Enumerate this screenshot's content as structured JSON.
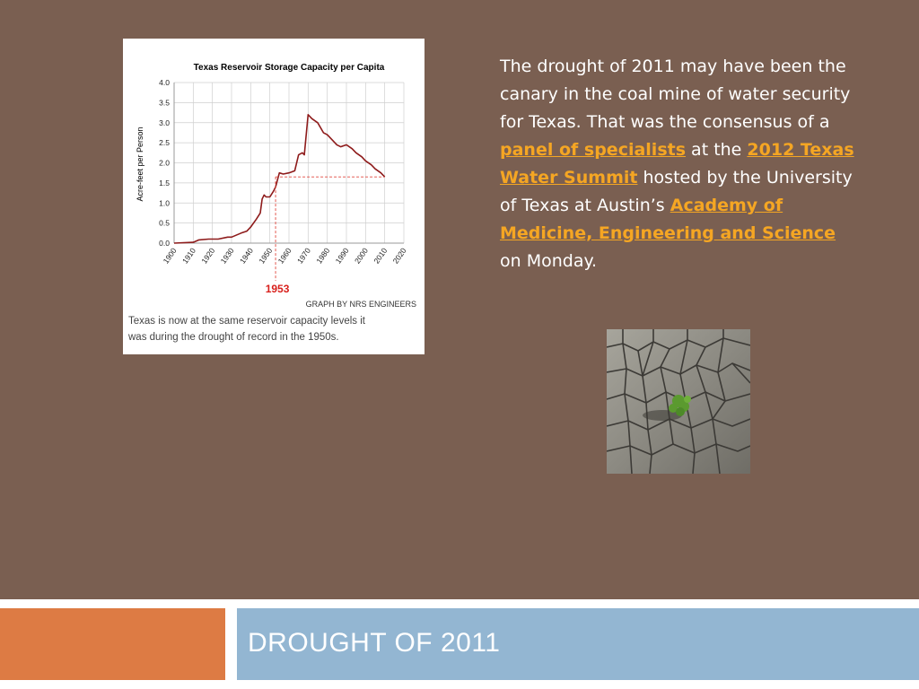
{
  "slide": {
    "title": "DROUGHT OF 2011",
    "body": {
      "p1": "The drought of 2011 may have been the canary in the coal mine of water security for Texas. That was the consensus of a ",
      "link1": "panel of specialists",
      "p2": " at the ",
      "link2": "2012 Texas Water Summit",
      "p3": " hosted by the University of Texas at Austin’s ",
      "link3": "Academy of Medicine, Engineering and Science",
      "p4": " on Monday."
    },
    "colors": {
      "background": "#7a5f51",
      "link": "#f5a623",
      "footer_left": "#dd7b44",
      "footer_right": "#93b6d2"
    }
  },
  "chart_data": {
    "type": "line",
    "title": "Texas Reservoir Storage Capacity per Capita",
    "ylabel": "Acre-feet per Person",
    "xlabel": "",
    "xlim": [
      1900,
      2020
    ],
    "ylim": [
      0,
      4.0
    ],
    "x_ticks": [
      "1900",
      "1910",
      "1920",
      "1930",
      "1940",
      "1950",
      "1960",
      "1970",
      "1980",
      "1990",
      "2000",
      "2010",
      "2020"
    ],
    "y_ticks": [
      "0.0",
      "0.5",
      "1.0",
      "1.5",
      "2.0",
      "2.5",
      "3.0",
      "3.5",
      "4.0"
    ],
    "series": [
      {
        "x": [
          1900,
          1910,
          1913,
          1918,
          1923,
          1928,
          1930,
          1935,
          1938,
          1940,
          1943,
          1945,
          1946,
          1947,
          1948,
          1950,
          1952,
          1953,
          1955,
          1957,
          1960,
          1963,
          1965,
          1967,
          1968,
          1970,
          1972,
          1975,
          1978,
          1980,
          1983,
          1985,
          1987,
          1990,
          1993,
          1995,
          1998,
          2000,
          2003,
          2005,
          2008,
          2010
        ],
        "y": [
          0.0,
          0.02,
          0.08,
          0.1,
          0.1,
          0.15,
          0.15,
          0.25,
          0.3,
          0.4,
          0.6,
          0.75,
          1.1,
          1.2,
          1.15,
          1.15,
          1.3,
          1.4,
          1.75,
          1.72,
          1.75,
          1.8,
          2.2,
          2.25,
          2.2,
          3.2,
          3.1,
          3.0,
          2.75,
          2.7,
          2.55,
          2.45,
          2.4,
          2.45,
          2.35,
          2.25,
          2.15,
          2.05,
          1.95,
          1.85,
          1.75,
          1.65
        ]
      }
    ],
    "annotation": {
      "x": 1953,
      "y": 1.65,
      "label": "1953"
    },
    "credit": "GRAPH BY NRS ENGINEERS",
    "caption": "Texas is now at the same reservoir capacity levels it was during the drought of record in the 1950s.",
    "grid": true
  }
}
